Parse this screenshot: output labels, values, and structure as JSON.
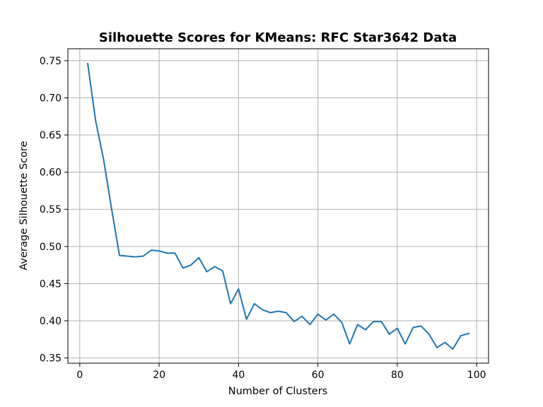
{
  "chart_data": {
    "type": "line",
    "title": "Silhouette Scores for KMeans: RFC Star3642 Data",
    "xlabel": "Number of Clusters",
    "ylabel": "Average Silhouette Score",
    "xlim": [
      -3,
      103
    ],
    "ylim": [
      0.343,
      0.766
    ],
    "xticks": [
      0,
      20,
      40,
      60,
      80,
      100
    ],
    "xtick_labels": [
      "0",
      "20",
      "40",
      "60",
      "80",
      "100"
    ],
    "yticks": [
      0.35,
      0.4,
      0.45,
      0.5,
      0.55,
      0.6,
      0.65,
      0.7,
      0.75
    ],
    "ytick_labels": [
      "0.35",
      "0.40",
      "0.45",
      "0.50",
      "0.55",
      "0.60",
      "0.65",
      "0.70",
      "0.75"
    ],
    "grid": true,
    "series": [
      {
        "color": "#1f77b4",
        "x": [
          2,
          4,
          6,
          8,
          10,
          12,
          14,
          16,
          18,
          20,
          22,
          24,
          26,
          28,
          30,
          32,
          34,
          36,
          38,
          40,
          42,
          44,
          46,
          48,
          50,
          52,
          54,
          56,
          58,
          60,
          62,
          64,
          66,
          68,
          70,
          72,
          74,
          76,
          78,
          80,
          82,
          84,
          86,
          88,
          90,
          92,
          94,
          96,
          98
        ],
        "y": [
          0.746,
          0.669,
          0.617,
          0.551,
          0.488,
          0.487,
          0.486,
          0.487,
          0.495,
          0.494,
          0.491,
          0.491,
          0.471,
          0.475,
          0.485,
          0.466,
          0.473,
          0.467,
          0.423,
          0.443,
          0.402,
          0.423,
          0.415,
          0.411,
          0.413,
          0.411,
          0.399,
          0.406,
          0.395,
          0.409,
          0.401,
          0.409,
          0.398,
          0.369,
          0.395,
          0.388,
          0.399,
          0.399,
          0.382,
          0.39,
          0.369,
          0.391,
          0.393,
          0.382,
          0.364,
          0.371,
          0.362,
          0.38,
          0.383
        ]
      }
    ]
  }
}
